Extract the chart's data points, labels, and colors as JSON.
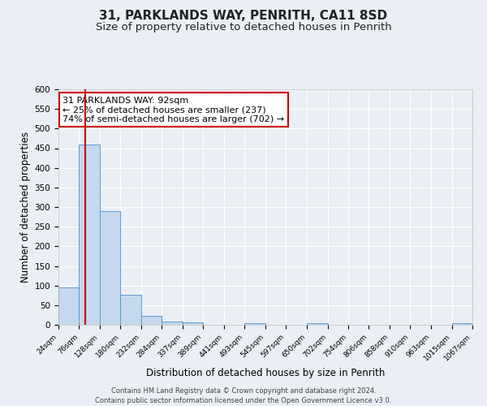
{
  "title": "31, PARKLANDS WAY, PENRITH, CA11 8SD",
  "subtitle": "Size of property relative to detached houses in Penrith",
  "xlabel": "Distribution of detached houses by size in Penrith",
  "ylabel": "Number of detached properties",
  "bin_edges": [
    24,
    76,
    128,
    180,
    232,
    284,
    337,
    389,
    441,
    493,
    545,
    597,
    650,
    702,
    754,
    806,
    858,
    910,
    963,
    1015,
    1067
  ],
  "bin_counts": [
    95,
    460,
    290,
    77,
    22,
    8,
    6,
    0,
    0,
    5,
    0,
    0,
    5,
    0,
    0,
    0,
    0,
    0,
    0,
    5
  ],
  "bar_color": "#c5d8ed",
  "bar_edge_color": "#5b9bd5",
  "red_line_x": 92,
  "annotation_line1": "31 PARKLANDS WAY: 92sqm",
  "annotation_line2": "← 25% of detached houses are smaller (237)",
  "annotation_line3": "74% of semi-detached houses are larger (702) →",
  "annotation_box_color": "#ffffff",
  "annotation_box_edge_color": "#cc0000",
  "annotation_font_size": 8,
  "red_line_color": "#cc0000",
  "ylim": [
    0,
    600
  ],
  "yticks": [
    0,
    50,
    100,
    150,
    200,
    250,
    300,
    350,
    400,
    450,
    500,
    550,
    600
  ],
  "bg_color": "#eaeff5",
  "grid_color": "#ffffff",
  "footer_line1": "Contains HM Land Registry data © Crown copyright and database right 2024.",
  "footer_line2": "Contains public sector information licensed under the Open Government Licence v3.0.",
  "title_fontsize": 11,
  "subtitle_fontsize": 9.5
}
